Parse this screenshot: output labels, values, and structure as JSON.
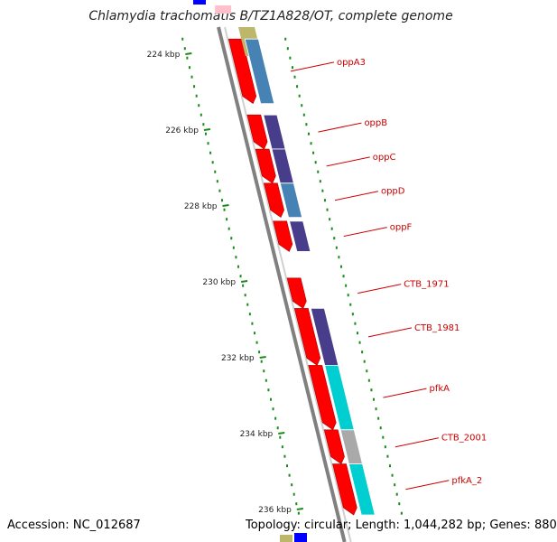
{
  "title": "Chlamydia trachomatis B/TZ1A828/OT, complete genome",
  "accession": {
    "label": "Accession:",
    "value": "NC_012687"
  },
  "summary": {
    "topology_label": "Topology:",
    "topology": "circular",
    "length_label": "Length:",
    "length": "1,044,282 bp",
    "genes_label": "Genes:",
    "genes": "880"
  },
  "ticks": [
    {
      "label": "224 kbp",
      "kbp": 224
    },
    {
      "label": "226 kbp",
      "kbp": 226
    },
    {
      "label": "228 kbp",
      "kbp": 228
    },
    {
      "label": "230 kbp",
      "kbp": 230
    },
    {
      "label": "232 kbp",
      "kbp": 232
    },
    {
      "label": "234 kbp",
      "kbp": 234
    },
    {
      "label": "236 kbp",
      "kbp": 236
    }
  ],
  "genes": [
    {
      "name": "oppA3",
      "start": 223.6,
      "end": 225.3,
      "cog_color": "#4682b4"
    },
    {
      "name": "oppB",
      "start": 225.6,
      "end": 226.5,
      "cog_color": "#483d8b"
    },
    {
      "name": "oppC",
      "start": 226.5,
      "end": 227.4,
      "cog_color": "#483d8b"
    },
    {
      "name": "oppD",
      "start": 227.4,
      "end": 228.3,
      "cog_color": "#4682b4"
    },
    {
      "name": "oppF",
      "start": 228.4,
      "end": 229.2,
      "cog_color": "#483d8b"
    },
    {
      "name": "CTB_1971",
      "start": 229.9,
      "end": 230.7,
      "cog_color": ""
    },
    {
      "name": "CTB_1981",
      "start": 230.7,
      "end": 232.2,
      "cog_color": "#483d8b"
    },
    {
      "name": "pfkA",
      "start": 232.2,
      "end": 233.9,
      "cog_color": "#00ced1"
    },
    {
      "name": "CTB_2001",
      "start": 233.9,
      "end": 234.8,
      "cog_color": "#a9a9a9"
    },
    {
      "name": "pfkA_2",
      "start": 234.8,
      "end": 236.5,
      "cog_color": "#00ced1"
    }
  ],
  "colors": {
    "cds": "#ff0000",
    "backbone": "#808080",
    "tick": "#1a8a1a",
    "label": "#cc0000",
    "pink_feature": "#ffc0cb",
    "olive_feature": "#bdb76b",
    "blue_feature": "#0000ff"
  }
}
